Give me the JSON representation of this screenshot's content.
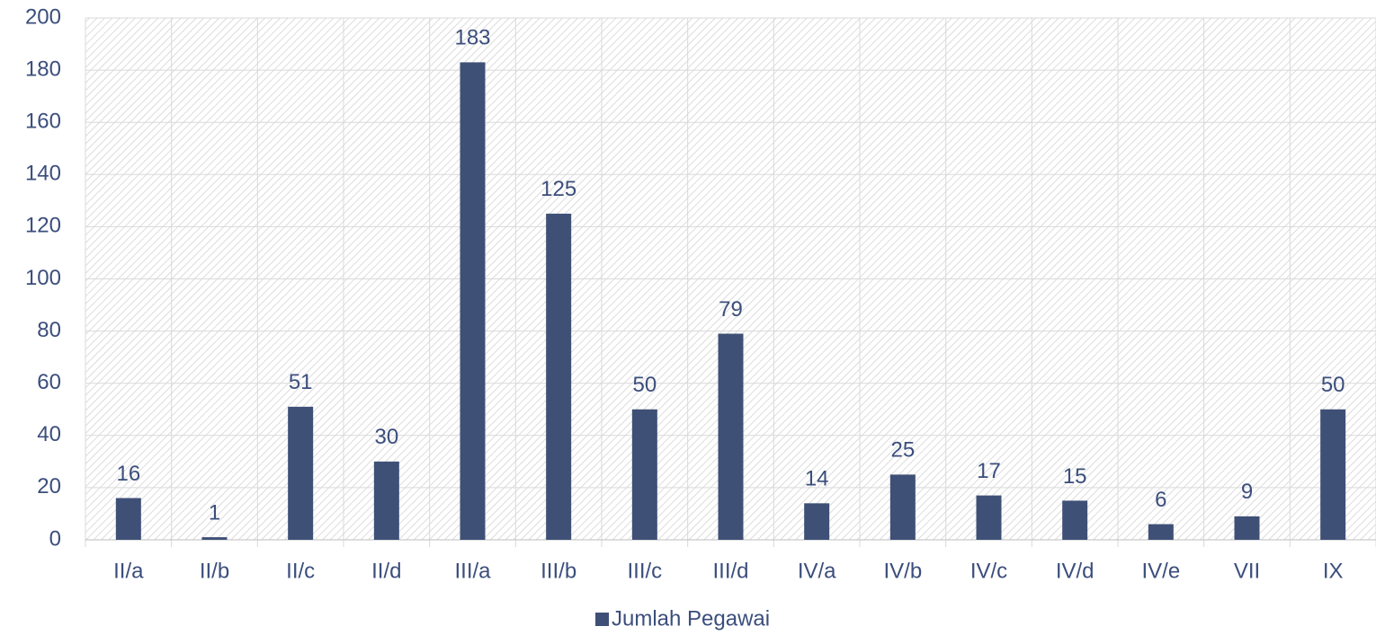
{
  "chart_data": {
    "type": "bar",
    "categories": [
      "II/a",
      "II/b",
      "II/c",
      "II/d",
      "III/a",
      "III/b",
      "III/c",
      "III/d",
      "IV/a",
      "IV/b",
      "IV/c",
      "IV/d",
      "IV/e",
      "VII",
      "IX"
    ],
    "series": [
      {
        "name": "Jumlah Pegawai",
        "color": "#3f5076",
        "values": [
          16,
          1,
          51,
          30,
          183,
          125,
          50,
          79,
          14,
          25,
          17,
          15,
          6,
          9,
          50
        ]
      }
    ],
    "ylim": [
      0,
      200
    ],
    "yticks": [
      0,
      20,
      40,
      60,
      80,
      100,
      120,
      140,
      160,
      180,
      200
    ],
    "grid": true,
    "legend": "bottom"
  }
}
